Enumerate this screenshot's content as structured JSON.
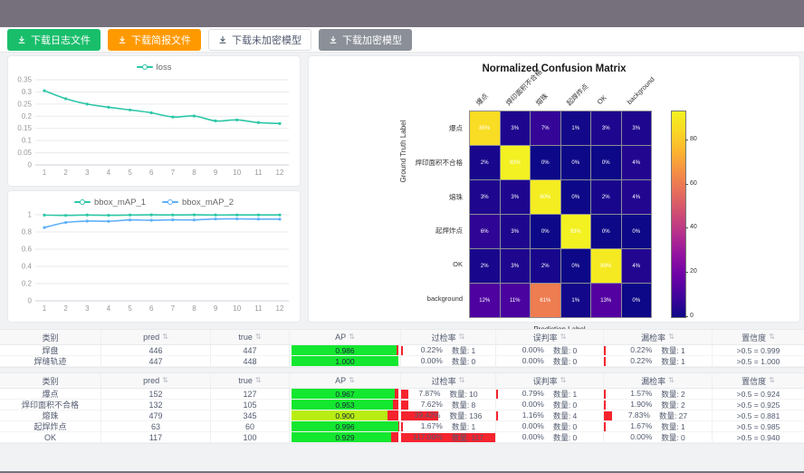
{
  "frame_color": "#75707c",
  "toolbar": {
    "buttons": [
      {
        "label": "下载日志文件",
        "style": "green"
      },
      {
        "label": "下载简报文件",
        "style": "orange"
      },
      {
        "label": "下载未加密模型",
        "style": "default"
      },
      {
        "label": "下载加密模型",
        "style": "gray"
      }
    ]
  },
  "chart_data": [
    {
      "type": "line",
      "title": "",
      "legend_position": "top",
      "x": [
        1,
        2,
        3,
        4,
        5,
        6,
        7,
        8,
        9,
        10,
        11,
        12
      ],
      "series": [
        {
          "name": "loss",
          "color": "#2cc7a7",
          "values": [
            0.305,
            0.272,
            0.25,
            0.237,
            0.226,
            0.214,
            0.197,
            0.201,
            0.181,
            0.185,
            0.174,
            0.17
          ]
        }
      ],
      "ylim": [
        0,
        0.35
      ],
      "yticks": [
        0,
        0.05,
        0.1,
        0.15,
        0.2,
        0.25,
        0.3,
        0.35
      ],
      "grid": true
    },
    {
      "type": "line",
      "title": "",
      "legend_position": "top",
      "x": [
        1,
        2,
        3,
        4,
        5,
        6,
        7,
        8,
        9,
        10,
        11,
        12
      ],
      "series": [
        {
          "name": "bbox_mAP_1",
          "color": "#2cc7a7",
          "values": [
            0.996,
            0.993,
            0.997,
            0.994,
            0.997,
            0.999,
            0.998,
            0.999,
            0.997,
            0.998,
            0.998,
            0.998
          ]
        },
        {
          "name": "bbox_mAP_2",
          "color": "#5fb0f9",
          "values": [
            0.851,
            0.91,
            0.926,
            0.924,
            0.94,
            0.936,
            0.941,
            0.94,
            0.951,
            0.952,
            0.95,
            0.949
          ]
        }
      ],
      "ylim": [
        0,
        1
      ],
      "yticks": [
        0,
        0.2,
        0.4,
        0.6,
        0.8,
        1
      ],
      "grid": true
    },
    {
      "type": "heatmap",
      "title": "Normalized Confusion Matrix",
      "xlabel": "Prediction Label",
      "ylabel": "Ground Truth Label",
      "labels": [
        "爆点",
        "焊印面积不合格",
        "熔珠",
        "起焊炸点",
        "OK",
        "background"
      ],
      "matrix_percent": [
        [
          85,
          3,
          7,
          1,
          3,
          3
        ],
        [
          2,
          93,
          0,
          0,
          0,
          4
        ],
        [
          3,
          3,
          90,
          0,
          2,
          4
        ],
        [
          6,
          3,
          0,
          93,
          0,
          0
        ],
        [
          2,
          3,
          2,
          0,
          89,
          4
        ],
        [
          12,
          11,
          61,
          1,
          13,
          0
        ]
      ],
      "colorbar_ticks": [
        0,
        20,
        40,
        60,
        80
      ],
      "colorbar_max": 93,
      "colormap": "plasma"
    }
  ],
  "tables": [
    {
      "headers": [
        {
          "label": "类别",
          "sortable": false
        },
        {
          "label": "pred",
          "sortable": true
        },
        {
          "label": "true",
          "sortable": true
        },
        {
          "label": "AP",
          "sortable": true
        },
        {
          "label": "过检率",
          "sortable": true
        },
        {
          "label": "误判率",
          "sortable": true
        },
        {
          "label": "漏检率",
          "sortable": true
        },
        {
          "label": "置信度",
          "sortable": true
        }
      ],
      "rows": [
        {
          "category": "焊盘",
          "pred": "446",
          "true": "447",
          "ap": 0.986,
          "ap_label": "0.986",
          "over": {
            "pct": 0.22,
            "pct_label": "0.22%",
            "count": "数量: 1"
          },
          "mis": {
            "pct": 0.0,
            "pct_label": "0.00%",
            "count": "数量: 0"
          },
          "miss": {
            "pct": 0.22,
            "pct_label": "0.22%",
            "count": "数量: 1"
          },
          "conf": ">0.5 = 0.999"
        },
        {
          "category": "焊缝轨迹",
          "pred": "447",
          "true": "448",
          "ap": 1.0,
          "ap_label": "1.000",
          "over": {
            "pct": 0.0,
            "pct_label": "0.00%",
            "count": "数量: 0"
          },
          "mis": {
            "pct": 0.0,
            "pct_label": "0.00%",
            "count": "数量: 0"
          },
          "miss": {
            "pct": 0.22,
            "pct_label": "0.22%",
            "count": "数量: 1"
          },
          "conf": ">0.5 = 1.000"
        }
      ]
    },
    {
      "headers": [
        {
          "label": "类别",
          "sortable": false
        },
        {
          "label": "pred",
          "sortable": true
        },
        {
          "label": "true",
          "sortable": true
        },
        {
          "label": "AP",
          "sortable": true
        },
        {
          "label": "过检率",
          "sortable": true
        },
        {
          "label": "误判率",
          "sortable": true
        },
        {
          "label": "漏检率",
          "sortable": true
        },
        {
          "label": "置信度",
          "sortable": true
        }
      ],
      "rows": [
        {
          "category": "爆点",
          "pred": "152",
          "true": "127",
          "ap": 0.967,
          "ap_label": "0.967",
          "over": {
            "pct": 7.87,
            "pct_label": "7.87%",
            "count": "数量: 10"
          },
          "mis": {
            "pct": 0.79,
            "pct_label": "0.79%",
            "count": "数量: 1"
          },
          "miss": {
            "pct": 1.57,
            "pct_label": "1.57%",
            "count": "数量: 2"
          },
          "conf": ">0.5 = 0.924"
        },
        {
          "category": "焊印面积不合格",
          "pred": "132",
          "true": "105",
          "ap": 0.953,
          "ap_label": "0.953",
          "over": {
            "pct": 7.62,
            "pct_label": "7.62%",
            "count": "数量: 8"
          },
          "mis": {
            "pct": 0.0,
            "pct_label": "0.00%",
            "count": "数量: 0"
          },
          "miss": {
            "pct": 1.9,
            "pct_label": "1.90%",
            "count": "数量: 2"
          },
          "conf": ">0.5 = 0.925"
        },
        {
          "category": "熔珠",
          "pred": "479",
          "true": "345",
          "ap": 0.9,
          "ap_label": "0.900",
          "over": {
            "pct": 39.42,
            "pct_label": "39.42%",
            "count": "数量: 136"
          },
          "mis": {
            "pct": 1.16,
            "pct_label": "1.16%",
            "count": "数量: 4"
          },
          "miss": {
            "pct": 7.83,
            "pct_label": "7.83%",
            "count": "数量: 27"
          },
          "conf": ">0.5 = 0.881"
        },
        {
          "category": "起焊炸点",
          "pred": "63",
          "true": "60",
          "ap": 0.996,
          "ap_label": "0.996",
          "over": {
            "pct": 1.67,
            "pct_label": "1.67%",
            "count": "数量: 1"
          },
          "mis": {
            "pct": 0.0,
            "pct_label": "0.00%",
            "count": "数量: 0"
          },
          "miss": {
            "pct": 1.67,
            "pct_label": "1.67%",
            "count": "数量: 1"
          },
          "conf": ">0.5 = 0.985"
        },
        {
          "category": "OK",
          "pred": "117",
          "true": "100",
          "ap": 0.929,
          "ap_label": "0.929",
          "over": {
            "pct": 117.0,
            "pct_label": "117.00%",
            "count": "数量: 117"
          },
          "mis": {
            "pct": 0.0,
            "pct_label": "0.00%",
            "count": "数量: 0"
          },
          "miss": {
            "pct": 0.0,
            "pct_label": "0.00%",
            "count": "数量: 0"
          },
          "conf": ">0.5 = 0.940"
        }
      ]
    }
  ]
}
